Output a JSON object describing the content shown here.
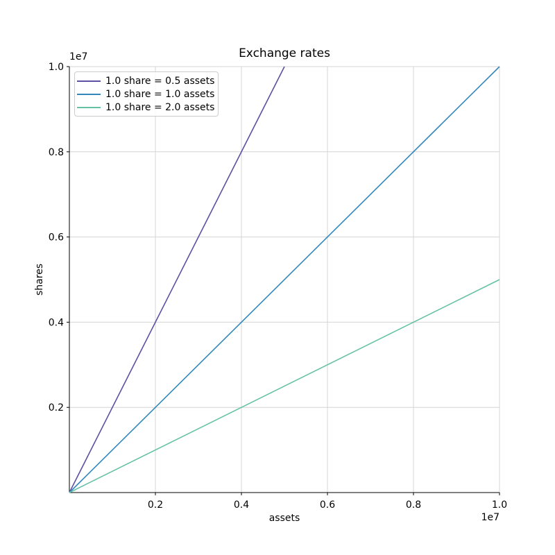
{
  "figure": {
    "background": "#ffffff"
  },
  "chart_data": {
    "type": "line",
    "title": "Exchange rates",
    "xlabel": "assets",
    "ylabel": "shares",
    "x_offset_text": "1e7",
    "y_offset_text": "1e7",
    "xlim": [
      0,
      10000000
    ],
    "ylim": [
      0,
      10000000
    ],
    "xticks": [
      2000000,
      4000000,
      6000000,
      8000000,
      10000000
    ],
    "xtick_labels": [
      "0.2",
      "0.4",
      "0.6",
      "0.8",
      "1.0"
    ],
    "yticks": [
      2000000,
      4000000,
      6000000,
      8000000,
      10000000
    ],
    "ytick_labels": [
      "0.2",
      "0.4",
      "0.6",
      "0.8",
      "1.0"
    ],
    "grid": true,
    "grid_color": "#d4d4d4",
    "spine_color": "#000000",
    "legend": {
      "position": "upper left",
      "border_color": "#cccccc",
      "background": "rgba(255,255,255,0.8)"
    },
    "series": [
      {
        "label": "1.0 share = 0.5 assets",
        "color": "#5e4fa2",
        "shares_per_asset": 2.0,
        "points": [
          [
            0,
            0
          ],
          [
            5000000,
            10000000
          ]
        ]
      },
      {
        "label": "1.0 share = 1.0 assets",
        "color": "#3288bd",
        "shares_per_asset": 1.0,
        "points": [
          [
            0,
            0
          ],
          [
            10000000,
            10000000
          ]
        ]
      },
      {
        "label": "1.0 share = 2.0 assets",
        "color": "#66c2a5",
        "shares_per_asset": 0.5,
        "points": [
          [
            0,
            0
          ],
          [
            10000000,
            5000000
          ]
        ]
      }
    ]
  }
}
